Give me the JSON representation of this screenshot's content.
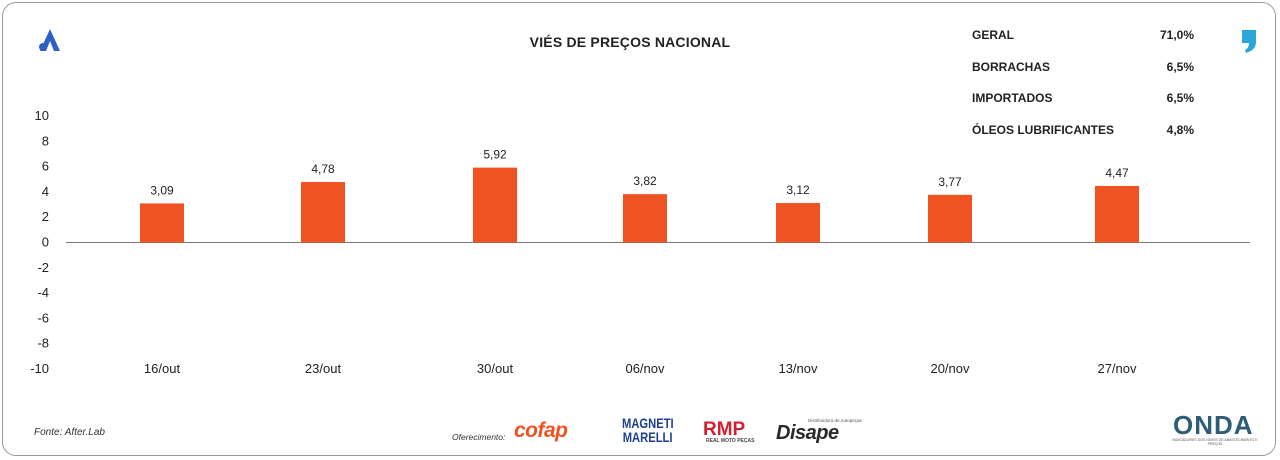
{
  "header": {
    "title": "VIÉS DE PREÇOS NACIONAL"
  },
  "summary": [
    {
      "label": "GERAL",
      "value": "71,0%"
    },
    {
      "label": "BORRACHAS",
      "value": "6,5%"
    },
    {
      "label": "IMPORTADOS",
      "value": "6,5%"
    },
    {
      "label": "ÓLEOS LUBRIFICANTES",
      "value": "4,8%"
    }
  ],
  "chart_data": {
    "type": "bar",
    "title": "VIÉS DE PREÇOS NACIONAL",
    "categories": [
      "16/out",
      "23/out",
      "30/out",
      "06/nov",
      "13/nov",
      "20/nov",
      "27/nov"
    ],
    "values": [
      3.09,
      4.78,
      5.92,
      3.82,
      3.12,
      3.77,
      4.47
    ],
    "value_labels": [
      "3,09",
      "4,78",
      "5,92",
      "3,82",
      "3,12",
      "3,77",
      "4,47"
    ],
    "y_ticks": [
      "10",
      "8",
      "6",
      "4",
      "2",
      "0",
      "-2",
      "-4",
      "-6",
      "-8",
      "-10"
    ],
    "ylim": [
      -10,
      10
    ],
    "xlabel": "",
    "ylabel": "",
    "grid": false,
    "bar_color": "#f05323"
  },
  "footer": {
    "source": "Fonte: After.Lab",
    "sponsor_label": "Oferecimento:",
    "sponsors": [
      "cofap",
      "MAGNETI MARELLI",
      "RMP",
      "Disape"
    ],
    "rmp_tagline": "REAL MOTO PEÇAS",
    "disape_tagline": "Distribuidora de Autopeças",
    "brand": "ONDA",
    "brand_tagline": "INDICADORES DOS NÍVEIS DE ABASTECIMENTO E PREÇOS"
  },
  "colors": {
    "accent_orange": "#f05323",
    "logo_blue": "#2d5fc4",
    "quote_cyan": "#2ba8d8"
  }
}
